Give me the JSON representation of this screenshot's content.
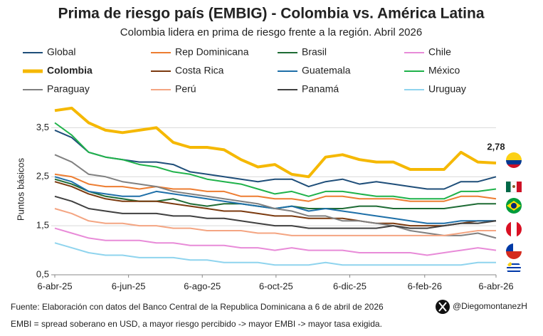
{
  "chart_data": {
    "type": "line",
    "title": "Prima de riesgo país (EMBIG) - Colombia vs. América Latina",
    "subtitle": "Colombia lidera en prima de riesgo frente a la región. Abril 2026",
    "y_label": "Puntos básicos",
    "source": "Fuente: Elaboración con datos del Banco Central de la Republica Dominicana a 6 de abril de 2026",
    "note": "EMBI = spread soberano en USD, a mayor riesgo percibido -> mayor EMBI -> mayor tasa exigida.",
    "handle": "@DiegomontanezH",
    "x": [
      "2025-04-06",
      "2025-04-20",
      "2025-05-04",
      "2025-05-18",
      "2025-06-01",
      "2025-06-15",
      "2025-06-29",
      "2025-07-13",
      "2025-07-27",
      "2025-08-10",
      "2025-08-24",
      "2025-09-07",
      "2025-09-21",
      "2025-10-05",
      "2025-10-19",
      "2025-11-02",
      "2025-11-16",
      "2025-11-30",
      "2025-12-14",
      "2025-12-28",
      "2026-01-11",
      "2026-01-25",
      "2026-02-08",
      "2026-02-22",
      "2026-03-08",
      "2026-03-22",
      "2026-04-06"
    ],
    "xlim": [
      "2025-04-06",
      "2026-04-06"
    ],
    "xticks": [
      {
        "value": "2025-04-06",
        "label": "6-abr-25"
      },
      {
        "value": "2025-06-06",
        "label": "6-jun-25"
      },
      {
        "value": "2025-08-06",
        "label": "6-ago-25"
      },
      {
        "value": "2025-10-06",
        "label": "6-oct-25"
      },
      {
        "value": "2025-12-06",
        "label": "6-dic-25"
      },
      {
        "value": "2026-02-06",
        "label": "6-feb-26"
      },
      {
        "value": "2026-04-06",
        "label": "6-abr-26"
      }
    ],
    "ylim": [
      0.5,
      4.0
    ],
    "yticks": [
      {
        "value": 0.5,
        "label": "0,5"
      },
      {
        "value": 1.5,
        "label": "1,5"
      },
      {
        "value": 2.5,
        "label": "2,5"
      },
      {
        "value": 3.5,
        "label": "3,5"
      }
    ],
    "grid": true,
    "series": [
      {
        "name": "Global",
        "color": "#1f4e79",
        "line_width": 2,
        "values": [
          3.45,
          3.3,
          3.0,
          2.9,
          2.85,
          2.8,
          2.8,
          2.75,
          2.6,
          2.55,
          2.5,
          2.45,
          2.4,
          2.45,
          2.45,
          2.3,
          2.4,
          2.45,
          2.35,
          2.4,
          2.35,
          2.3,
          2.25,
          2.25,
          2.4,
          2.4,
          2.5
        ]
      },
      {
        "name": "Rep Dominicana",
        "color": "#ed7d31",
        "line_width": 2,
        "values": [
          2.55,
          2.5,
          2.35,
          2.3,
          2.3,
          2.25,
          2.3,
          2.25,
          2.25,
          2.2,
          2.2,
          2.1,
          2.1,
          2.05,
          2.05,
          2.0,
          2.1,
          2.1,
          2.05,
          2.05,
          2.05,
          2.0,
          2.0,
          2.0,
          2.1,
          2.1,
          2.05
        ]
      },
      {
        "name": "Brasil",
        "color": "#1e6b34",
        "line_width": 2,
        "values": [
          2.45,
          2.35,
          2.2,
          2.1,
          2.05,
          2.0,
          2.0,
          2.05,
          1.95,
          1.9,
          1.95,
          1.95,
          1.9,
          1.85,
          1.9,
          1.85,
          1.85,
          1.85,
          1.9,
          1.9,
          1.85,
          1.85,
          1.85,
          1.85,
          1.9,
          1.95,
          1.95
        ]
      },
      {
        "name": "Chile",
        "color": "#e88bd8",
        "line_width": 2,
        "values": [
          1.45,
          1.35,
          1.25,
          1.2,
          1.2,
          1.2,
          1.15,
          1.15,
          1.1,
          1.1,
          1.1,
          1.05,
          1.05,
          1.0,
          1.05,
          1.0,
          1.0,
          1.0,
          0.95,
          0.95,
          0.95,
          0.95,
          0.9,
          0.95,
          1.0,
          1.05,
          1.0
        ]
      },
      {
        "name": "Colombia",
        "color": "#f5b800",
        "line_width": 4,
        "values": [
          3.85,
          3.9,
          3.6,
          3.45,
          3.4,
          3.45,
          3.5,
          3.2,
          3.1,
          3.1,
          3.05,
          2.85,
          2.7,
          2.75,
          2.55,
          2.5,
          2.9,
          2.95,
          2.85,
          2.8,
          2.8,
          2.65,
          2.65,
          2.65,
          3.0,
          2.8,
          2.78
        ]
      },
      {
        "name": "Costa Rica",
        "color": "#7b3a0f",
        "line_width": 2,
        "values": [
          2.4,
          2.3,
          2.15,
          2.05,
          2.0,
          2.0,
          2.0,
          1.95,
          1.9,
          1.85,
          1.8,
          1.8,
          1.75,
          1.7,
          1.7,
          1.65,
          1.65,
          1.65,
          1.6,
          1.55,
          1.55,
          1.5,
          1.5,
          1.5,
          1.55,
          1.6,
          1.6
        ]
      },
      {
        "name": "Guatemala",
        "color": "#1e6fa8",
        "line_width": 2,
        "values": [
          2.5,
          2.4,
          2.2,
          2.15,
          2.1,
          2.1,
          2.2,
          2.15,
          2.1,
          2.05,
          2.0,
          1.95,
          1.9,
          1.85,
          1.9,
          1.8,
          1.85,
          1.8,
          1.75,
          1.7,
          1.65,
          1.6,
          1.55,
          1.55,
          1.6,
          1.6,
          1.6
        ]
      },
      {
        "name": "México",
        "color": "#1fb24a",
        "line_width": 2,
        "values": [
          3.6,
          3.35,
          3.0,
          2.9,
          2.85,
          2.75,
          2.7,
          2.6,
          2.55,
          2.45,
          2.4,
          2.35,
          2.25,
          2.15,
          2.2,
          2.1,
          2.2,
          2.2,
          2.15,
          2.1,
          2.1,
          2.05,
          2.05,
          2.05,
          2.2,
          2.2,
          2.25
        ]
      },
      {
        "name": "Paraguay",
        "color": "#808080",
        "line_width": 2,
        "values": [
          2.95,
          2.8,
          2.55,
          2.5,
          2.4,
          2.35,
          2.3,
          2.2,
          2.15,
          2.1,
          2.05,
          2.0,
          1.95,
          1.85,
          1.8,
          1.7,
          1.7,
          1.6,
          1.6,
          1.55,
          1.5,
          1.4,
          1.35,
          1.3,
          1.3,
          1.35,
          1.25
        ]
      },
      {
        "name": "Perú",
        "color": "#f4a582",
        "line_width": 2,
        "values": [
          1.85,
          1.75,
          1.6,
          1.55,
          1.55,
          1.5,
          1.5,
          1.45,
          1.45,
          1.4,
          1.4,
          1.4,
          1.35,
          1.35,
          1.3,
          1.3,
          1.3,
          1.3,
          1.3,
          1.3,
          1.3,
          1.3,
          1.3,
          1.3,
          1.35,
          1.4,
          1.4
        ]
      },
      {
        "name": "Panamá",
        "color": "#404040",
        "line_width": 2,
        "values": [
          2.1,
          2.0,
          1.85,
          1.8,
          1.75,
          1.75,
          1.75,
          1.7,
          1.7,
          1.65,
          1.65,
          1.6,
          1.55,
          1.5,
          1.5,
          1.45,
          1.45,
          1.45,
          1.45,
          1.45,
          1.5,
          1.45,
          1.45,
          1.5,
          1.55,
          1.55,
          1.6
        ]
      },
      {
        "name": "Uruguay",
        "color": "#8fd4ee",
        "line_width": 2,
        "values": [
          1.15,
          1.05,
          0.95,
          0.9,
          0.9,
          0.85,
          0.85,
          0.85,
          0.8,
          0.8,
          0.75,
          0.75,
          0.75,
          0.7,
          0.7,
          0.7,
          0.75,
          0.7,
          0.7,
          0.7,
          0.7,
          0.7,
          0.7,
          0.7,
          0.7,
          0.75,
          0.75
        ]
      }
    ],
    "annotations": [
      {
        "text": "2,78",
        "x": "2026-04-06",
        "y": 2.78
      }
    ]
  }
}
